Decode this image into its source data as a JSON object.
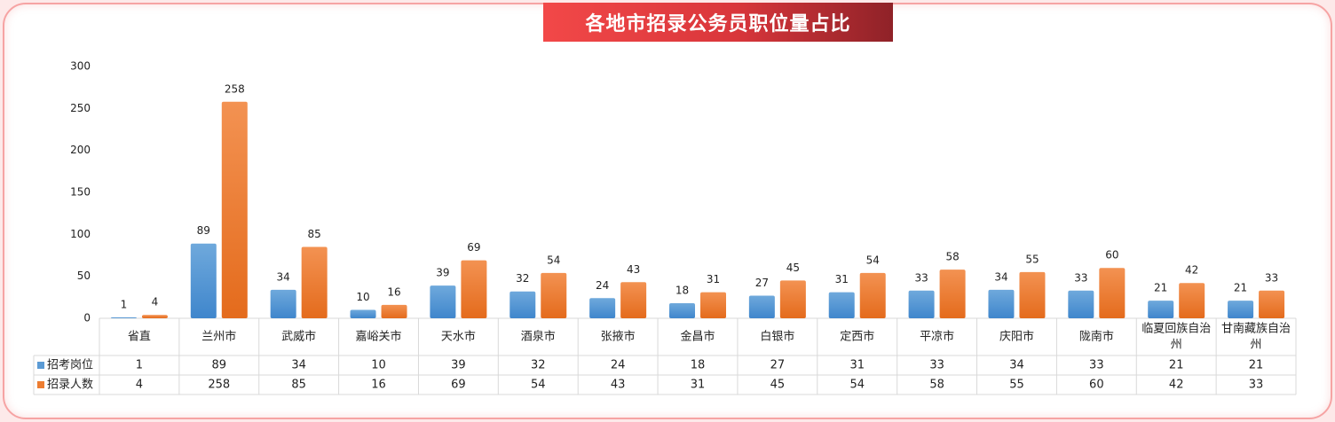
{
  "title": "各地市招录公务员职位量占比",
  "colors": {
    "series1": "#5b9bd5",
    "series2": "#ed7d31",
    "grid": "#d9d9d9"
  },
  "chart_data": {
    "type": "bar",
    "title": "各地市招录公务员职位量占比",
    "categories": [
      "省直",
      "兰州市",
      "武威市",
      "嘉峪关市",
      "天水市",
      "酒泉市",
      "张掖市",
      "金昌市",
      "白银市",
      "定西市",
      "平凉市",
      "庆阳市",
      "陇南市",
      "临夏回族自治州",
      "甘南藏族自治州"
    ],
    "category_lines": [
      [
        "省直"
      ],
      [
        "兰州市"
      ],
      [
        "武威市"
      ],
      [
        "嘉峪关市"
      ],
      [
        "天水市"
      ],
      [
        "酒泉市"
      ],
      [
        "张掖市"
      ],
      [
        "金昌市"
      ],
      [
        "白银市"
      ],
      [
        "定西市"
      ],
      [
        "平凉市"
      ],
      [
        "庆阳市"
      ],
      [
        "陇南市"
      ],
      [
        "临夏回族自治",
        "州"
      ],
      [
        "甘南藏族自治",
        "州"
      ]
    ],
    "series": [
      {
        "name": "招考岗位",
        "values": [
          1,
          89,
          34,
          10,
          39,
          32,
          24,
          18,
          27,
          31,
          33,
          34,
          33,
          21,
          21
        ]
      },
      {
        "name": "招录人数",
        "values": [
          4,
          258,
          85,
          16,
          69,
          54,
          43,
          31,
          45,
          54,
          58,
          55,
          60,
          42,
          33
        ]
      }
    ],
    "ylim": [
      0,
      300
    ],
    "yticks": [
      0,
      50,
      100,
      150,
      200,
      250,
      300
    ],
    "grid": false,
    "data_table": true
  }
}
